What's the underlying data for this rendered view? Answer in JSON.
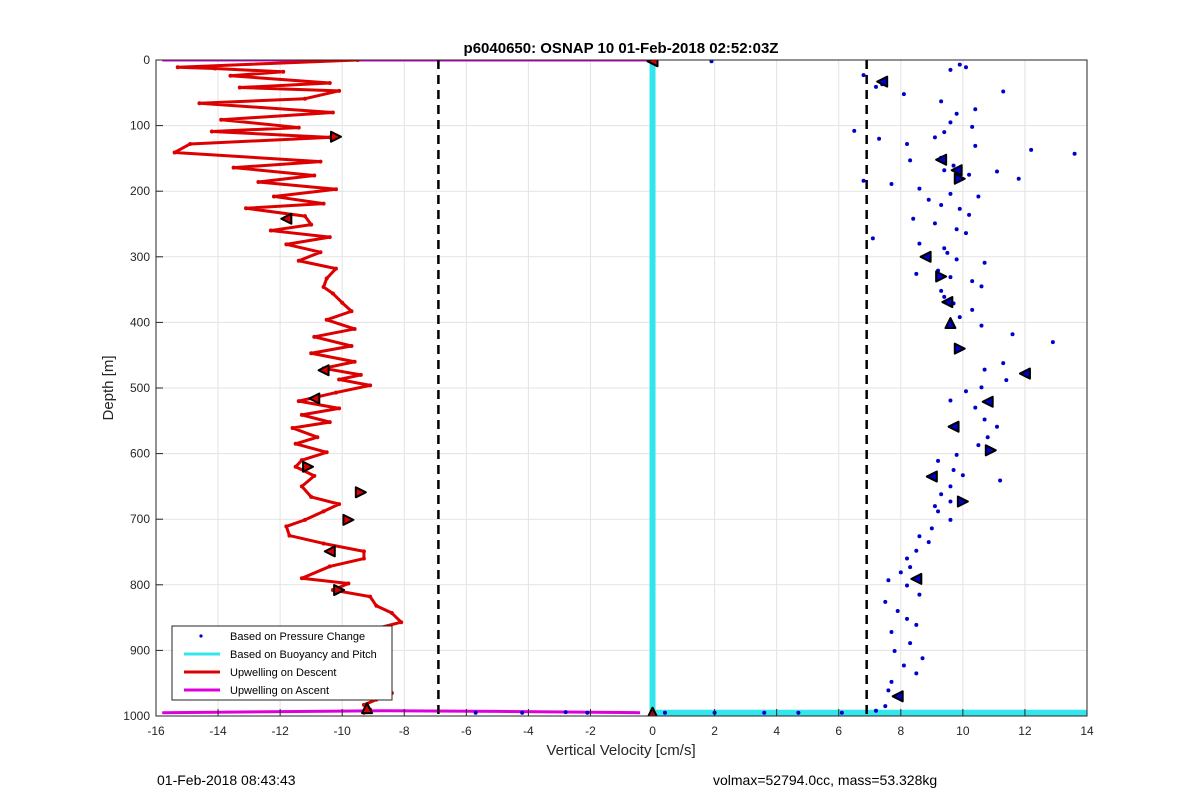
{
  "footer": {
    "left": "01-Feb-2018 08:43:43",
    "right": "volmax=52794.0cc, mass=53.328kg"
  },
  "chart_data": {
    "type": "scatter",
    "title": "p6040650: OSNAP 10 01-Feb-2018 02:52:03Z",
    "xlabel": "Vertical Velocity [cm/s]",
    "ylabel": "Depth [m]",
    "xlim": [
      -16,
      14
    ],
    "ylim": [
      0,
      1000
    ],
    "y_reversed": true,
    "grid": true,
    "legend_position": "bottom-left",
    "xticks": [
      -16,
      -14,
      -12,
      -10,
      -8,
      -6,
      -4,
      -2,
      0,
      2,
      4,
      6,
      8,
      10,
      12,
      14
    ],
    "yticks": [
      0,
      100,
      200,
      300,
      400,
      500,
      600,
      700,
      800,
      900,
      1000
    ],
    "thresholds": [
      -6.9,
      6.9
    ],
    "colors": {
      "pressure": "#0000cc",
      "buoyancy": "#33e6ee",
      "descent": "#dd0000",
      "ascent": "#dd00dd",
      "threshold": "#000000"
    },
    "series": [
      {
        "name": "Based on Pressure Change",
        "style": "points",
        "x": [
          9.9,
          10.1,
          9.6,
          7.4,
          6.8,
          7.2,
          8.1,
          9.3,
          11.3,
          10.4,
          9.8,
          9.6,
          10.3,
          9.4,
          6.5,
          7.3,
          8.2,
          9.1,
          10.4,
          12.2,
          13.6,
          9.3,
          8.3,
          9.7,
          9.4,
          11.1,
          10.2,
          6.8,
          7.7,
          8.6,
          9.6,
          10.5,
          8.9,
          11.8,
          9.3,
          9.9,
          10.2,
          8.4,
          9.1,
          9.8,
          10.1,
          7.1,
          8.6,
          9.4,
          9.5,
          8.8,
          9.8,
          10.7,
          9.2,
          8.5,
          9.6,
          10.3,
          10.6,
          9.3,
          9.4,
          9.7,
          10.3,
          9.9,
          10.6,
          11.6,
          12.9,
          11.3,
          10.7,
          11.4,
          10.6,
          10.1,
          9.6,
          10.4,
          10.7,
          11.1,
          10.8,
          10.5,
          9.8,
          9.2,
          9.7,
          10.0,
          11.2,
          9.6,
          9.3,
          9.6,
          9.1,
          9.2,
          9.6,
          9.0,
          8.6,
          8.9,
          8.5,
          8.2,
          8.3,
          8.0,
          7.6,
          8.2,
          8.6,
          7.5,
          7.9,
          8.2,
          8.5,
          7.7,
          8.3,
          7.8,
          8.7,
          8.1,
          8.5,
          7.7,
          7.6,
          8.0,
          7.5,
          7.2,
          1.9,
          -2.8,
          -5.7,
          -4.2,
          -2.1,
          0.4,
          2.0,
          3.6,
          4.7,
          6.1
        ],
        "y": [
          7,
          11,
          15,
          37,
          23,
          41,
          52,
          63,
          48,
          75,
          82,
          95,
          102,
          110,
          108,
          120,
          128,
          118,
          131,
          137,
          143,
          149,
          153,
          161,
          168,
          170,
          175,
          184,
          189,
          196,
          204,
          208,
          213,
          181,
          221,
          227,
          236,
          242,
          249,
          258,
          264,
          272,
          280,
          287,
          294,
          300,
          304,
          309,
          321,
          326,
          331,
          337,
          345,
          352,
          361,
          371,
          381,
          392,
          405,
          418,
          430,
          462,
          472,
          488,
          499,
          505,
          519,
          530,
          548,
          559,
          575,
          587,
          602,
          611,
          625,
          633,
          641,
          650,
          662,
          673,
          680,
          688,
          701,
          714,
          726,
          735,
          748,
          760,
          773,
          781,
          793,
          801,
          815,
          826,
          840,
          852,
          861,
          872,
          889,
          901,
          912,
          923,
          935,
          948,
          961,
          972,
          985,
          992,
          2,
          994,
          995,
          995,
          995,
          995,
          995,
          995,
          995,
          995
        ]
      },
      {
        "name": "Based on Buoyancy and Pitch",
        "style": "line",
        "x": [
          0.0,
          0.0,
          0.0,
          14.0
        ],
        "y": [
          0,
          995,
          995,
          995
        ]
      },
      {
        "name": "Upwelling on Descent",
        "style": "line-markers",
        "x": [
          -9.5,
          -15.3,
          -14.1,
          -11.9,
          -13.6,
          -10.4,
          -13.3,
          -10.1,
          -11.2,
          -14.6,
          -10.3,
          -13.9,
          -11.4,
          -14.2,
          -10.4,
          -14.9,
          -15.4,
          -10.7,
          -13.5,
          -10.9,
          -12.7,
          -10.2,
          -12.2,
          -10.6,
          -13.1,
          -11.2,
          -11.0,
          -12.3,
          -10.4,
          -11.8,
          -10.7,
          -11.4,
          -10.2,
          -10.5,
          -10.6,
          -10.3,
          -10.0,
          -9.7,
          -10.5,
          -9.6,
          -10.9,
          -9.7,
          -11.0,
          -9.6,
          -10.6,
          -9.4,
          -10.1,
          -9.1,
          -10.2,
          -11.4,
          -10.1,
          -11.3,
          -10.4,
          -11.6,
          -10.8,
          -11.5,
          -10.5,
          -11.3,
          -11.5,
          -10.9,
          -11.3,
          -11.0,
          -10.1,
          -10.6,
          -11.2,
          -11.8,
          -11.7,
          -10.6,
          -9.3,
          -9.3,
          -10.4,
          -11.3,
          -9.8,
          -10.3,
          -9.1,
          -8.9,
          -8.4,
          -8.1,
          -9.1,
          -9.3,
          -8.9,
          -9.0,
          -9.5,
          -8.6,
          -9.3,
          -8.9,
          -9.8,
          -8.4,
          -8.9,
          -9.3,
          -9.1,
          -9.2,
          -9.3
        ],
        "y": [
          0,
          11,
          13,
          18,
          24,
          35,
          42,
          47,
          59,
          66,
          80,
          91,
          103,
          109,
          118,
          128,
          141,
          155,
          164,
          176,
          186,
          197,
          208,
          219,
          226,
          238,
          251,
          260,
          270,
          281,
          293,
          306,
          318,
          333,
          346,
          356,
          370,
          383,
          396,
          410,
          422,
          436,
          447,
          460,
          470,
          480,
          487,
          496,
          507,
          520,
          531,
          541,
          552,
          561,
          575,
          585,
          598,
          610,
          620,
          634,
          650,
          666,
          677,
          688,
          701,
          711,
          725,
          737,
          749,
          760,
          772,
          790,
          798,
          808,
          818,
          832,
          843,
          857,
          869,
          882,
          893,
          910,
          920,
          930,
          940,
          950,
          958,
          965,
          975,
          983,
          990,
          994,
          995
        ]
      },
      {
        "name": "Upwelling on Ascent",
        "style": "line",
        "x": [
          -15.8,
          -9.5,
          -8.0,
          -3.0,
          0.0
        ],
        "y": [
          0,
          0,
          0,
          0,
          0
        ]
      },
      {
        "name": "Upwelling on Ascent",
        "style": "line",
        "x": [
          -15.8,
          -8.6,
          -5.0,
          -0.4
        ],
        "y": [
          995,
          992,
          993,
          995
        ]
      }
    ],
    "markers": {
      "descent": [
        {
          "x": -10.2,
          "y": 117,
          "dir": "right"
        },
        {
          "x": -11.8,
          "y": 242,
          "dir": "left"
        },
        {
          "x": -10.6,
          "y": 473,
          "dir": "left"
        },
        {
          "x": -10.9,
          "y": 516,
          "dir": "left"
        },
        {
          "x": -11.1,
          "y": 620,
          "dir": "right"
        },
        {
          "x": -9.4,
          "y": 659,
          "dir": "right"
        },
        {
          "x": -9.8,
          "y": 701,
          "dir": "right"
        },
        {
          "x": -10.4,
          "y": 749,
          "dir": "left"
        },
        {
          "x": -10.1,
          "y": 808,
          "dir": "right"
        },
        {
          "x": -9.3,
          "y": 872,
          "dir": "right"
        },
        {
          "x": -9.6,
          "y": 937,
          "dir": "left"
        },
        {
          "x": -9.2,
          "y": 988,
          "dir": "up"
        },
        {
          "x": 0.0,
          "y": 2,
          "dir": "left"
        },
        {
          "x": 0.0,
          "y": 995,
          "dir": "up"
        }
      ],
      "pressure": [
        {
          "x": 7.4,
          "y": 33,
          "dir": "left"
        },
        {
          "x": 9.3,
          "y": 152,
          "dir": "left"
        },
        {
          "x": 9.8,
          "y": 168,
          "dir": "left"
        },
        {
          "x": 9.9,
          "y": 181,
          "dir": "right"
        },
        {
          "x": 8.8,
          "y": 300,
          "dir": "left"
        },
        {
          "x": 9.3,
          "y": 330,
          "dir": "right"
        },
        {
          "x": 9.5,
          "y": 369,
          "dir": "left"
        },
        {
          "x": 9.6,
          "y": 401,
          "dir": "up"
        },
        {
          "x": 9.9,
          "y": 440,
          "dir": "right"
        },
        {
          "x": 12.0,
          "y": 478,
          "dir": "left"
        },
        {
          "x": 10.8,
          "y": 521,
          "dir": "left"
        },
        {
          "x": 9.7,
          "y": 559,
          "dir": "left"
        },
        {
          "x": 10.9,
          "y": 595,
          "dir": "right"
        },
        {
          "x": 9.0,
          "y": 635,
          "dir": "left"
        },
        {
          "x": 10.0,
          "y": 673,
          "dir": "right"
        },
        {
          "x": 8.5,
          "y": 791,
          "dir": "left"
        },
        {
          "x": 7.9,
          "y": 970,
          "dir": "left"
        }
      ]
    }
  }
}
